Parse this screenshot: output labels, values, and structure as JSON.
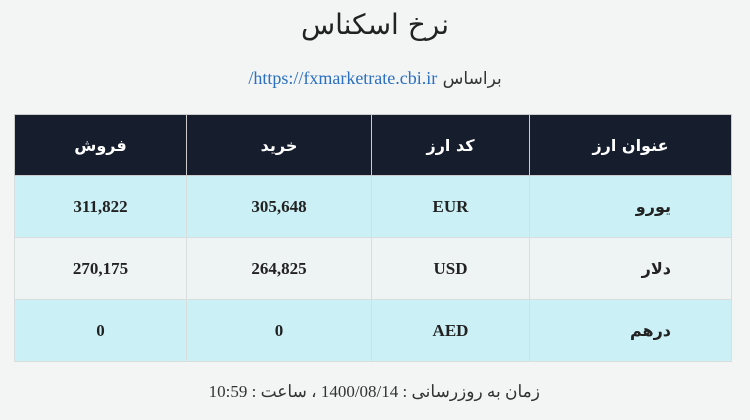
{
  "title": "نرخ اسکناس",
  "source": {
    "label": "براساس",
    "url": "https://fxmarketrate.cbi.ir/"
  },
  "colors": {
    "header_bg": "#161d2d",
    "row_highlight": "#cbf1f6",
    "link": "#2a6fc0"
  },
  "table": {
    "headers": [
      "عنوان ارز",
      "کد ارز",
      "خرید",
      "فروش"
    ],
    "rows": [
      {
        "name": "یورو",
        "code": "EUR",
        "buy": "305,648",
        "sell": "311,822"
      },
      {
        "name": "دلار",
        "code": "USD",
        "buy": "264,825",
        "sell": "270,175"
      },
      {
        "name": "درهم",
        "code": "AED",
        "buy": "0",
        "sell": "0"
      }
    ]
  },
  "footer": "زمان به روزرسانی : 1400/08/14 ، ساعت : 10:59"
}
